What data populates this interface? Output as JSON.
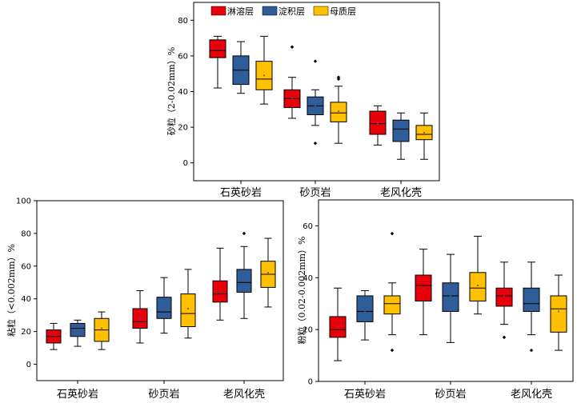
{
  "colors": {
    "淋溶层": "#e8000b",
    "淀积层": "#2e5d99",
    "母质层": "#ffc000"
  },
  "chart_data": [
    {
      "type": "box",
      "id": "sand",
      "ylabel": "砂粒（2-0.02mm）%",
      "ylim": [
        -10,
        90
      ],
      "yticks": [
        0,
        20,
        40,
        60,
        80
      ],
      "categories": [
        "石英砂岩",
        "砂页岩",
        "老风化壳"
      ],
      "legend": [
        "淋溶层",
        "淀积层",
        "母质层"
      ],
      "legend_position": "top",
      "boxes": [
        [
          {
            "series": "淋溶层",
            "whislo": 42,
            "q1": 59,
            "med": 63,
            "q3": 69,
            "whishi": 71,
            "mean": 64,
            "fliers": []
          },
          {
            "series": "淀积层",
            "whislo": 39,
            "q1": 44,
            "med": 52,
            "q3": 60,
            "whishi": 68,
            "mean": 53,
            "fliers": []
          },
          {
            "series": "母质层",
            "whislo": 33,
            "q1": 41,
            "med": 47,
            "q3": 57,
            "whishi": 71,
            "mean": 49,
            "fliers": []
          }
        ],
        [
          {
            "series": "淋溶层",
            "whislo": 25,
            "q1": 31,
            "med": 36,
            "q3": 41,
            "whishi": 48,
            "mean": 36,
            "fliers": [
              65
            ]
          },
          {
            "series": "淀积层",
            "whislo": 21,
            "q1": 27,
            "med": 32,
            "q3": 37,
            "whishi": 41,
            "mean": 32,
            "fliers": [
              11,
              57
            ]
          },
          {
            "series": "母质层",
            "whislo": 11,
            "q1": 23,
            "med": 28,
            "q3": 34,
            "whishi": 43,
            "mean": 29,
            "fliers": [
              47,
              48
            ]
          }
        ],
        [
          {
            "series": "淋溶层",
            "whislo": 10,
            "q1": 16,
            "med": 22,
            "q3": 29,
            "whishi": 32,
            "mean": 22,
            "fliers": []
          },
          {
            "series": "淀积层",
            "whislo": 2,
            "q1": 12,
            "med": 19,
            "q3": 24,
            "whishi": 28,
            "mean": 18,
            "fliers": []
          },
          {
            "series": "母质层",
            "whislo": 2,
            "q1": 13,
            "med": 16,
            "q3": 21,
            "whishi": 28,
            "mean": 17,
            "fliers": []
          }
        ]
      ]
    },
    {
      "type": "box",
      "id": "clay",
      "ylabel": "粘粒（<0.002mm）%",
      "ylim": [
        -10,
        100
      ],
      "yticks": [
        0,
        20,
        40,
        60,
        80,
        100
      ],
      "categories": [
        "石英砂岩",
        "砂页岩",
        "老风化壳"
      ],
      "boxes": [
        [
          {
            "series": "淋溶层",
            "whislo": 9,
            "q1": 13,
            "med": 17,
            "q3": 21,
            "whishi": 25,
            "mean": 18,
            "fliers": []
          },
          {
            "series": "淀积层",
            "whislo": 11,
            "q1": 17,
            "med": 22,
            "q3": 25,
            "whishi": 27,
            "mean": 21,
            "fliers": []
          },
          {
            "series": "母质层",
            "whislo": 9,
            "q1": 14,
            "med": 21,
            "q3": 28,
            "whishi": 32,
            "mean": 22,
            "fliers": []
          }
        ],
        [
          {
            "series": "淋溶层",
            "whislo": 13,
            "q1": 22,
            "med": 26,
            "q3": 34,
            "whishi": 45,
            "mean": 28,
            "fliers": []
          },
          {
            "series": "淀积层",
            "whislo": 19,
            "q1": 28,
            "med": 32,
            "q3": 41,
            "whishi": 53,
            "mean": 34,
            "fliers": []
          },
          {
            "series": "母质层",
            "whislo": 16,
            "q1": 23,
            "med": 31,
            "q3": 43,
            "whishi": 58,
            "mean": 34,
            "fliers": []
          }
        ],
        [
          {
            "series": "淋溶层",
            "whislo": 27,
            "q1": 38,
            "med": 43,
            "q3": 51,
            "whishi": 71,
            "mean": 45,
            "fliers": []
          },
          {
            "series": "淀积层",
            "whislo": 28,
            "q1": 44,
            "med": 50,
            "q3": 58,
            "whishi": 72,
            "mean": 51,
            "fliers": [
              80
            ]
          },
          {
            "series": "母质层",
            "whislo": 35,
            "q1": 47,
            "med": 55,
            "q3": 63,
            "whishi": 77,
            "mean": 56,
            "fliers": []
          }
        ]
      ]
    },
    {
      "type": "box",
      "id": "silt",
      "ylabel": "粉粒（0.02-0.002mm）%",
      "ylim": [
        0,
        70
      ],
      "yticks": [
        0,
        20,
        40,
        60
      ],
      "categories": [
        "石英砂岩",
        "砂页岩",
        "老风化壳"
      ],
      "boxes": [
        [
          {
            "series": "淋溶层",
            "whislo": 8,
            "q1": 17,
            "med": 20,
            "q3": 25,
            "whishi": 36,
            "mean": 21,
            "fliers": []
          },
          {
            "series": "淀积层",
            "whislo": 16,
            "q1": 23,
            "med": 27,
            "q3": 33,
            "whishi": 35,
            "mean": 27,
            "fliers": []
          },
          {
            "series": "母质层",
            "whislo": 18,
            "q1": 26,
            "med": 30,
            "q3": 33,
            "whishi": 38,
            "mean": 30,
            "fliers": [
              12,
              57
            ]
          }
        ],
        [
          {
            "series": "淋溶层",
            "whislo": 18,
            "q1": 31,
            "med": 37,
            "q3": 41,
            "whishi": 51,
            "mean": 36,
            "fliers": []
          },
          {
            "series": "淀积层",
            "whislo": 15,
            "q1": 27,
            "med": 33,
            "q3": 38,
            "whishi": 49,
            "mean": 33,
            "fliers": []
          },
          {
            "series": "母质层",
            "whislo": 26,
            "q1": 31,
            "med": 36,
            "q3": 42,
            "whishi": 56,
            "mean": 37,
            "fliers": []
          }
        ],
        [
          {
            "series": "淋溶层",
            "whislo": 22,
            "q1": 29,
            "med": 33,
            "q3": 36,
            "whishi": 46,
            "mean": 33,
            "fliers": [
              17
            ]
          },
          {
            "series": "淀积层",
            "whislo": 18,
            "q1": 27,
            "med": 30,
            "q3": 36,
            "whishi": 46,
            "mean": 31,
            "fliers": [
              12
            ]
          },
          {
            "series": "母质层",
            "whislo": 12,
            "q1": 19,
            "med": 28,
            "q3": 33,
            "whishi": 41,
            "mean": 27,
            "fliers": []
          }
        ]
      ]
    }
  ]
}
